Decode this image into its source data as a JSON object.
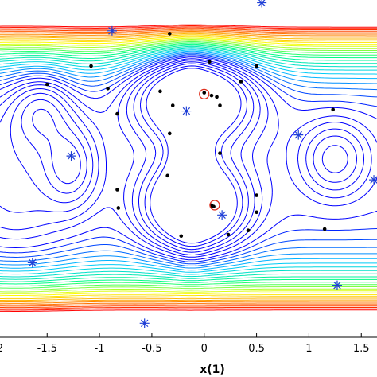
{
  "chart_data": {
    "type": "contour",
    "xlabel": "x(1)",
    "ylabel": "",
    "xlim": [
      -1.95,
      1.65
    ],
    "ylim": [
      -1.2,
      1.2
    ],
    "xticks": [
      {
        "value": -1.5,
        "label": "-1.5"
      },
      {
        "value": -1,
        "label": "-1"
      },
      {
        "value": -0.5,
        "label": "-0.5"
      },
      {
        "value": 0,
        "label": "0"
      },
      {
        "value": 0.5,
        "label": "0.5"
      },
      {
        "value": 1,
        "label": "1"
      },
      {
        "value": 1.5,
        "label": "1.5"
      }
    ],
    "contour_colormap": [
      "#0000ff",
      "#00c8ff",
      "#00ff80",
      "#ffff00",
      "#ff8000",
      "#ff0000"
    ],
    "series": [
      {
        "marker": "asterisk",
        "color": "#1f3fd6",
        "points": [
          [
            0.55,
            1.18
          ],
          [
            -0.88,
            0.98
          ],
          [
            -0.17,
            0.41
          ],
          [
            0.9,
            0.24
          ],
          [
            -1.27,
            0.09
          ],
          [
            0.17,
            -0.33
          ],
          [
            -1.64,
            -0.67
          ],
          [
            1.27,
            -0.83
          ],
          [
            -0.57,
            -1.1
          ],
          [
            1.62,
            -0.08
          ]
        ]
      },
      {
        "marker": "dot",
        "color": "#000000",
        "points": [
          [
            -0.33,
            0.96
          ],
          [
            0.05,
            0.76
          ],
          [
            -1.08,
            0.73
          ],
          [
            0.5,
            0.73
          ],
          [
            -1.5,
            0.6
          ],
          [
            -0.92,
            0.57
          ],
          [
            0.35,
            0.62
          ],
          [
            -0.42,
            0.55
          ],
          [
            0.0,
            0.54
          ],
          [
            0.07,
            0.52
          ],
          [
            0.12,
            0.51
          ],
          [
            -0.3,
            0.45
          ],
          [
            0.15,
            0.45
          ],
          [
            1.23,
            0.42
          ],
          [
            -0.83,
            0.39
          ],
          [
            -0.33,
            0.25
          ],
          [
            0.15,
            0.11
          ],
          [
            -0.35,
            -0.05
          ],
          [
            -0.83,
            -0.15
          ],
          [
            0.07,
            -0.26
          ],
          [
            0.08,
            -0.27
          ],
          [
            0.09,
            -0.27
          ],
          [
            -0.82,
            -0.28
          ],
          [
            0.5,
            -0.19
          ],
          [
            0.5,
            -0.31
          ],
          [
            1.15,
            -0.43
          ],
          [
            0.42,
            -0.44
          ],
          [
            0.23,
            -0.47
          ],
          [
            -0.22,
            -0.48
          ]
        ]
      },
      {
        "marker": "circle",
        "color": "#e0301e",
        "points": [
          [
            0.0,
            0.53
          ],
          [
            0.1,
            -0.26
          ]
        ]
      }
    ]
  }
}
